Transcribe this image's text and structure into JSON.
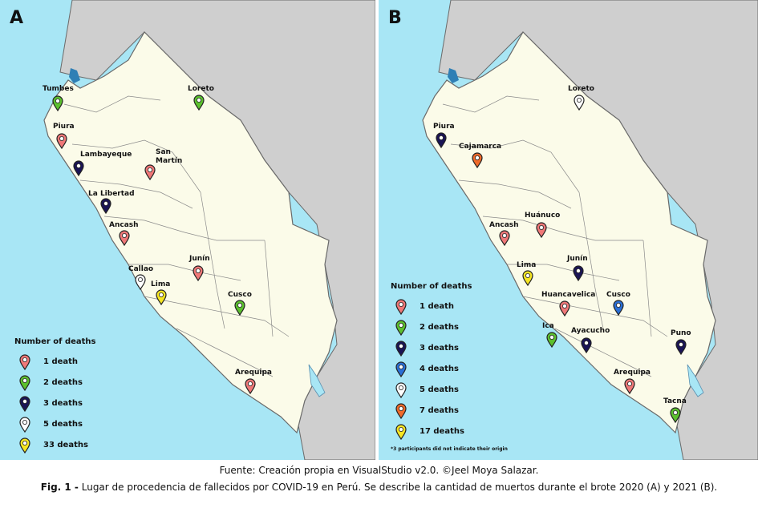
{
  "panels": {
    "A": {
      "letter": "A",
      "labels": {
        "tumbes": "Tumbes",
        "loreto": "Loreto",
        "piura": "Piura",
        "lambayeque": "Lambayeque",
        "sanmartin": "San\nMartín",
        "lalibertad": "La Libertad",
        "ancash": "Ancash",
        "junin": "Junín",
        "callao": "Callao",
        "lima": "Lima",
        "cusco": "Cusco",
        "arequipa": "Arequipa"
      },
      "legend": {
        "title": "Number of deaths",
        "items": [
          {
            "label": "1 death",
            "color": "#f07878"
          },
          {
            "label": "2 deaths",
            "color": "#5cc12e"
          },
          {
            "label": "3 deaths",
            "color": "#1a1456"
          },
          {
            "label": "5 deaths",
            "color": "#ffffff"
          },
          {
            "label": "33 deaths",
            "color": "#f6e623"
          }
        ]
      }
    },
    "B": {
      "letter": "B",
      "labels": {
        "loreto": "Loreto",
        "piura": "Piura",
        "cajamarca": "Cajamarca",
        "huanuco": "Huánuco",
        "ancash": "Ancash",
        "lima": "Lima",
        "junin": "Junín",
        "huancavelica": "Huancavelica",
        "cusco": "Cusco",
        "ica": "Ica",
        "ayacucho": "Ayacucho",
        "puno": "Puno",
        "arequipa": "Arequipa",
        "tacna": "Tacna"
      },
      "legend": {
        "title": "Number of deaths",
        "items": [
          {
            "label": "1 death",
            "color": "#f07878"
          },
          {
            "label": "2 deaths",
            "color": "#5cc12e"
          },
          {
            "label": "3 deaths",
            "color": "#1a1456"
          },
          {
            "label": "4 deaths",
            "color": "#2a6fd6"
          },
          {
            "label": "5 deaths",
            "color": "#ffffff"
          },
          {
            "label": "7 deaths",
            "color": "#f06a2a"
          },
          {
            "label": "17 deaths",
            "color": "#f6e623"
          }
        ]
      },
      "note": "*3 participants did not indicate their origin"
    }
  },
  "colors": {
    "ocean": "#a8e6f5",
    "land_neighbor": "#cfcfcf",
    "peru": "#fbfbe9",
    "border": "#6a6a6a"
  },
  "caption": {
    "source": "Fuente: Creación propia en VisualStudio v2.0. ©Jeel Moya Salazar.",
    "fig_label": "Fig. 1 -",
    "fig_text": " Lugar de procedencia de fallecidos por COVID-19 en Perú. Se describe la cantidad de muertos durante el brote 2020 (A) y 2021 (B)."
  }
}
